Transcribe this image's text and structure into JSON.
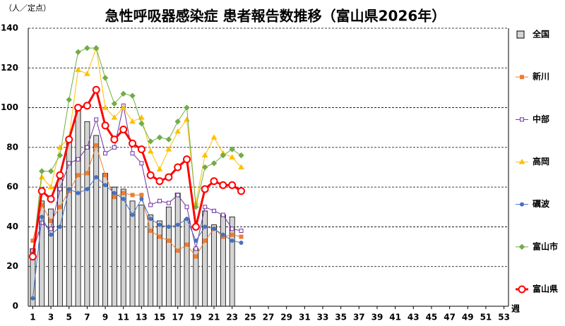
{
  "chart_data": {
    "type": "bar-line",
    "title": "急性呼吸器感染症 患者報告数推移（富山県2026年）",
    "y_label": "（人／定点）",
    "x_label": "週",
    "x": [
      1,
      2,
      3,
      4,
      5,
      6,
      7,
      8,
      9,
      10,
      11,
      12,
      13,
      14,
      15,
      16,
      17,
      18,
      19,
      20,
      21,
      22,
      23,
      24
    ],
    "xlim": [
      0.5,
      53.5
    ],
    "xticks": [
      1,
      3,
      5,
      7,
      9,
      11,
      13,
      15,
      17,
      19,
      21,
      23,
      25,
      27,
      29,
      31,
      33,
      35,
      37,
      39,
      41,
      43,
      45,
      47,
      49,
      51,
      53
    ],
    "ylim": [
      0,
      140
    ],
    "yticks": [
      0,
      20,
      40,
      60,
      80,
      100,
      120,
      140
    ],
    "grid": true,
    "legend": "right",
    "bars": {
      "name": "全国",
      "color": "#d4d4d4",
      "values": [
        29,
        53,
        49,
        64,
        85,
        101,
        93,
        86,
        67,
        60,
        59,
        53,
        51,
        46,
        43,
        50,
        57,
        44,
        29,
        48,
        41,
        46,
        45,
        null
      ]
    },
    "series": [
      {
        "name": "新川",
        "color": "#ed7d31",
        "marker": "square",
        "values": [
          33,
          51,
          43,
          50,
          58,
          66,
          67,
          81,
          66,
          55,
          57,
          56,
          56,
          38,
          35,
          33,
          28,
          31,
          25,
          33,
          39,
          35,
          36,
          35
        ]
      },
      {
        "name": "中部",
        "color": "#7030a0",
        "marker": "open-square",
        "values": [
          28,
          42,
          39,
          59,
          72,
          74,
          80,
          94,
          77,
          80,
          101,
          77,
          72,
          51,
          53,
          52,
          56,
          50,
          29,
          50,
          48,
          46,
          39,
          38
        ]
      },
      {
        "name": "高岡",
        "color": "#ffc000",
        "marker": "triangle",
        "values": [
          26,
          65,
          60,
          80,
          85,
          119,
          117,
          130,
          100,
          95,
          100,
          93,
          95,
          78,
          69,
          79,
          88,
          94,
          52,
          76,
          85,
          77,
          75,
          70
        ]
      },
      {
        "name": "礪波",
        "color": "#4472c4",
        "marker": "dot",
        "values": [
          4,
          45,
          36,
          40,
          59,
          57,
          59,
          65,
          61,
          57,
          54,
          46,
          54,
          44,
          41,
          40,
          41,
          44,
          33,
          40,
          39,
          36,
          33,
          32
        ]
      },
      {
        "name": "富山市",
        "color": "#70ad47",
        "marker": "diamond",
        "values": [
          25,
          68,
          68,
          76,
          104,
          128,
          130,
          130,
          115,
          102,
          107,
          106,
          92,
          83,
          85,
          84,
          93,
          100,
          50,
          70,
          72,
          76,
          79,
          76
        ]
      },
      {
        "name": "富山県",
        "color": "#ff0000",
        "marker": "circle",
        "values": [
          25,
          58,
          54,
          66,
          84,
          100,
          101,
          109,
          91,
          84,
          89,
          82,
          79,
          66,
          63,
          65,
          70,
          74,
          40,
          59,
          63,
          61,
          61,
          58
        ]
      }
    ]
  }
}
